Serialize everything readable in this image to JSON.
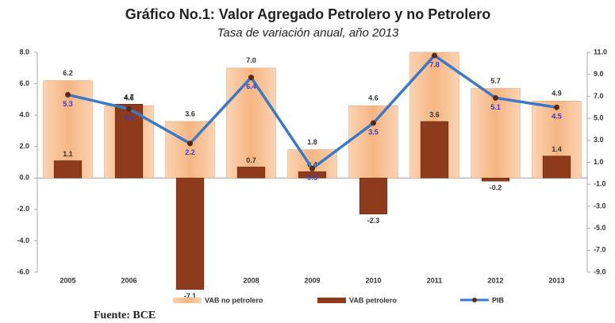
{
  "chart_data": {
    "type": "bar_line",
    "title": "Gráfico No.1: Valor Agregado Petrolero y no Petrolero",
    "subtitle": "Tasa de variación anual, año 2013",
    "categories": [
      "2005",
      "2006",
      "2007",
      "2008",
      "2009",
      "2010",
      "2011",
      "2012",
      "2013"
    ],
    "series": [
      {
        "name": "VAB no petrolero",
        "color": "#f8bf92",
        "kind": "bar",
        "values": [
          6.2,
          4.6,
          3.6,
          7.0,
          1.8,
          4.6,
          8.0,
          5.7,
          4.9
        ],
        "value_labels": [
          "6.2",
          "4.6",
          "3.6",
          "7.0",
          "1.8",
          "4.6",
          null,
          "5.7",
          "4.9"
        ]
      },
      {
        "name": "VAB petrolero",
        "color": "#8e3b1c",
        "kind": "bar",
        "values": [
          1.1,
          4.7,
          -7.1,
          0.7,
          0.4,
          -2.3,
          3.6,
          -0.2,
          1.4
        ]
      },
      {
        "name": "PIB",
        "color": "#3b78c6",
        "kind": "line",
        "values": [
          5.3,
          4.4,
          2.2,
          6.4,
          0.6,
          3.5,
          7.8,
          5.1,
          4.5
        ]
      }
    ],
    "ylim": [
      -6,
      8
    ],
    "yticks": [
      {
        "value": -6,
        "label": "-6.0"
      },
      {
        "value": -4,
        "label": "-4.0"
      },
      {
        "value": -2,
        "label": "-2.0"
      },
      {
        "value": 0,
        "label": "0.0"
      },
      {
        "value": 2,
        "label": "2.0"
      },
      {
        "value": 4,
        "label": "4.0"
      },
      {
        "value": 6,
        "label": "6.0"
      },
      {
        "value": 8,
        "label": "8.0"
      }
    ],
    "y2lim": [
      -9,
      11
    ],
    "y2ticks": [
      {
        "value": -9,
        "label": "-9.0"
      },
      {
        "value": -7,
        "label": "-7.0"
      },
      {
        "value": -5,
        "label": "-5.0"
      },
      {
        "value": -3,
        "label": "-3.0"
      },
      {
        "value": -1,
        "label": "-1.0"
      },
      {
        "value": 1,
        "label": "1.0"
      },
      {
        "value": 3,
        "label": "3.0"
      },
      {
        "value": 5,
        "label": "5.0"
      },
      {
        "value": 7,
        "label": "7.0"
      },
      {
        "value": 9,
        "label": "9.0"
      },
      {
        "value": 11,
        "label": "11.0"
      }
    ],
    "legend": "bottom",
    "source": "Fuente: BCE"
  }
}
